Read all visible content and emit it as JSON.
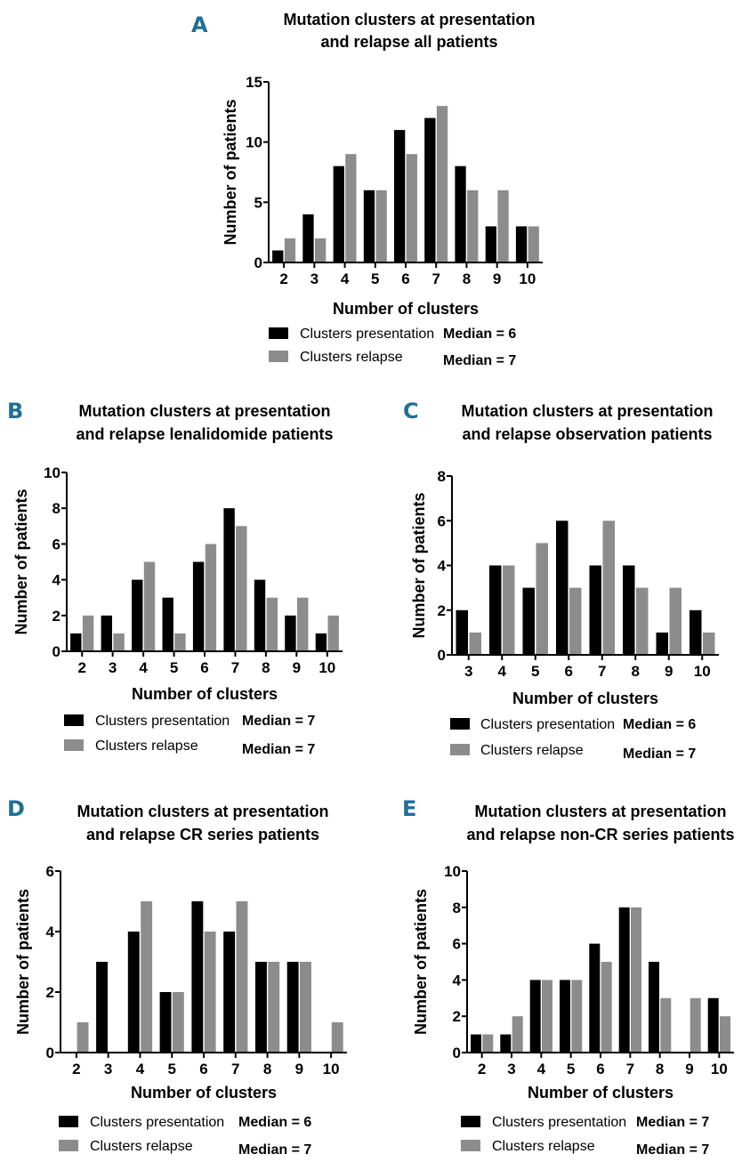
{
  "legend": {
    "presentation_label": "Clusters presentation",
    "relapse_label": "Clusters relapse"
  },
  "colors": {
    "presentation": "#000000",
    "relapse": "#8c8c8c"
  },
  "chart_data": [
    {
      "panel": "A",
      "type": "bar",
      "title": [
        "Mutation clusters at presentation",
        "and relapse all patients"
      ],
      "xlabel": "Number of clusters",
      "ylabel": "Number of patients",
      "categories": [
        "2",
        "3",
        "4",
        "5",
        "6",
        "7",
        "8",
        "9",
        "10"
      ],
      "ylim": [
        0,
        15
      ],
      "yticks": [
        0,
        5,
        10,
        15
      ],
      "series": [
        {
          "name": "Clusters presentation",
          "values": [
            1,
            4,
            8,
            6,
            11,
            12,
            8,
            3,
            3
          ]
        },
        {
          "name": "Clusters relapse",
          "values": [
            2,
            2,
            9,
            6,
            9,
            13,
            6,
            6,
            3
          ]
        }
      ],
      "medians": [
        "Median = 6",
        "Median = 7"
      ]
    },
    {
      "panel": "B",
      "type": "bar",
      "title": [
        "Mutation clusters at presentation",
        "and relapse lenalidomide patients"
      ],
      "xlabel": "Number of clusters",
      "ylabel": "Number of patients",
      "categories": [
        "2",
        "3",
        "4",
        "5",
        "6",
        "7",
        "8",
        "9",
        "10"
      ],
      "ylim": [
        0,
        10
      ],
      "yticks": [
        0,
        2,
        4,
        6,
        8,
        10
      ],
      "series": [
        {
          "name": "Clusters presentation",
          "values": [
            1,
            2,
            4,
            3,
            5,
            8,
            4,
            2,
            1
          ]
        },
        {
          "name": "Clusters relapse",
          "values": [
            2,
            1,
            5,
            1,
            6,
            7,
            3,
            3,
            2
          ]
        }
      ],
      "medians": [
        "Median = 7",
        "Median = 7"
      ]
    },
    {
      "panel": "C",
      "type": "bar",
      "title": [
        "Mutation clusters at presentation",
        "and relapse observation patients"
      ],
      "xlabel": "Number of clusters",
      "ylabel": "Number of patients",
      "categories": [
        "3",
        "4",
        "5",
        "6",
        "7",
        "8",
        "9",
        "10"
      ],
      "ylim": [
        0,
        8
      ],
      "yticks": [
        0,
        2,
        4,
        6,
        8
      ],
      "series": [
        {
          "name": "Clusters presentation",
          "values": [
            2,
            4,
            3,
            6,
            4,
            4,
            1,
            2
          ]
        },
        {
          "name": "Clusters relapse",
          "values": [
            1,
            4,
            5,
            3,
            6,
            3,
            3,
            1
          ]
        }
      ],
      "medians": [
        "Median = 6",
        "Median = 7"
      ]
    },
    {
      "panel": "D",
      "type": "bar",
      "title": [
        "Mutation clusters at presentation",
        "and relapse CR series patients"
      ],
      "xlabel": "Number of clusters",
      "ylabel": "Number of patients",
      "categories": [
        "2",
        "3",
        "4",
        "5",
        "6",
        "7",
        "8",
        "9",
        "10"
      ],
      "ylim": [
        0,
        6
      ],
      "yticks": [
        0,
        2,
        4,
        6
      ],
      "series": [
        {
          "name": "Clusters presentation",
          "values": [
            0,
            3,
            4,
            2,
            5,
            4,
            3,
            3,
            0
          ]
        },
        {
          "name": "Clusters relapse",
          "values": [
            1,
            0,
            5,
            2,
            4,
            5,
            3,
            3,
            1
          ]
        }
      ],
      "medians": [
        "Median = 6",
        "Median = 7"
      ]
    },
    {
      "panel": "E",
      "type": "bar",
      "title": [
        "Mutation clusters at presentation",
        "and relapse non-CR series patients"
      ],
      "xlabel": "Number of clusters",
      "ylabel": "Number of patients",
      "categories": [
        "2",
        "3",
        "4",
        "5",
        "6",
        "7",
        "8",
        "9",
        "10"
      ],
      "ylim": [
        0,
        10
      ],
      "yticks": [
        0,
        2,
        4,
        6,
        8,
        10
      ],
      "series": [
        {
          "name": "Clusters presentation",
          "values": [
            1,
            1,
            4,
            4,
            6,
            8,
            5,
            0,
            3
          ]
        },
        {
          "name": "Clusters relapse",
          "values": [
            1,
            2,
            4,
            4,
            5,
            8,
            3,
            3,
            2
          ]
        }
      ],
      "medians": [
        "Median = 7",
        "Median = 7"
      ]
    }
  ]
}
